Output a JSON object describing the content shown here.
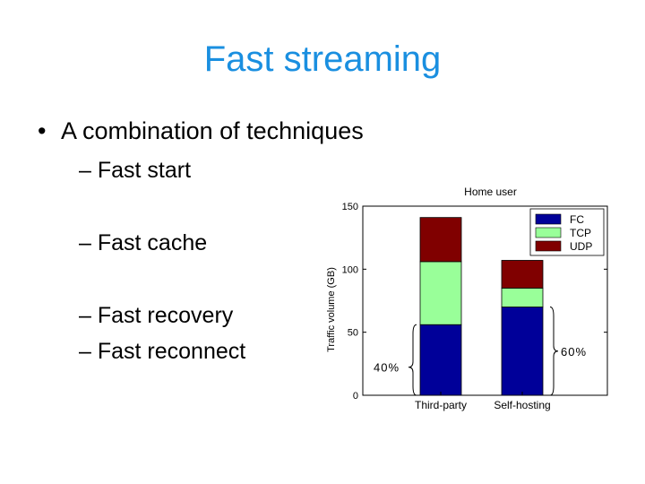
{
  "slide": {
    "title": "Fast streaming",
    "bullet": "A combination of techniques",
    "bullet_marker": "•",
    "subitems": [
      "– Fast start",
      "– Fast cache",
      "– Fast recovery",
      "– Fast reconnect"
    ]
  },
  "chart_data": {
    "type": "bar",
    "stacked": true,
    "title": "Home user",
    "xlabel": "",
    "ylabel": "Traffic volume (GB)",
    "ylim": [
      0,
      150
    ],
    "yticks": [
      0,
      50,
      100,
      150
    ],
    "categories": [
      "Third-party",
      "Self-hosting"
    ],
    "series": [
      {
        "name": "FC",
        "color": "#000099",
        "values": [
          56,
          70
        ]
      },
      {
        "name": "TCP",
        "color": "#99ff99",
        "values": [
          50,
          15
        ]
      },
      {
        "name": "UDP",
        "color": "#800000",
        "values": [
          35,
          22
        ]
      }
    ],
    "legend_position": "top-right",
    "grid": false,
    "annotations": [
      {
        "text": "40%",
        "category": "Third-party"
      },
      {
        "text": "60%",
        "category": "Self-hosting"
      }
    ]
  }
}
